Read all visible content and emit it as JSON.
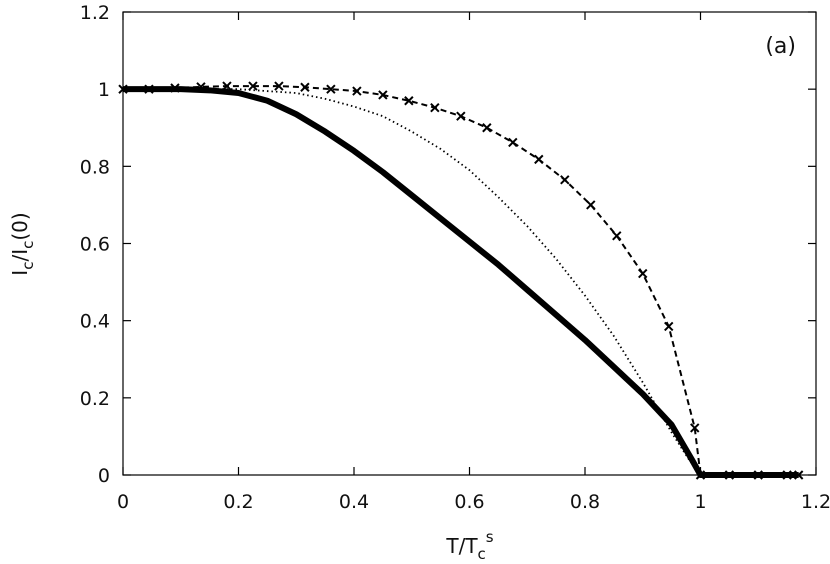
{
  "chart_data": {
    "type": "line",
    "panel_label": "(a)",
    "xlabel": {
      "main": "T/T",
      "sub": "c",
      "sup": "s"
    },
    "ylabel": {
      "main": "I",
      "sub1": "c",
      "mid": "/I",
      "sub2": "c",
      "tail": "(0)"
    },
    "xlim": [
      0,
      1.2
    ],
    "ylim": [
      0,
      1.2
    ],
    "xticks": [
      "0",
      "0.2",
      "0.4",
      "0.6",
      "0.8",
      "1",
      "1.2"
    ],
    "yticks": [
      "0",
      "0.2",
      "0.4",
      "0.6",
      "0.8",
      "1",
      "1.2"
    ],
    "grid": false,
    "series": [
      {
        "style": "solid-thick",
        "color": "#000000",
        "x": [
          0,
          0.05,
          0.1,
          0.15,
          0.2,
          0.25,
          0.3,
          0.35,
          0.4,
          0.45,
          0.5,
          0.55,
          0.6,
          0.65,
          0.7,
          0.75,
          0.8,
          0.85,
          0.9,
          0.95,
          0.985,
          1.0,
          1.05,
          1.1,
          1.15,
          1.17
        ],
        "y": [
          1.0,
          1.0,
          1.0,
          0.997,
          0.99,
          0.97,
          0.935,
          0.89,
          0.84,
          0.785,
          0.725,
          0.665,
          0.605,
          0.545,
          0.48,
          0.415,
          0.35,
          0.28,
          0.21,
          0.13,
          0.04,
          0.0,
          0.0,
          0.0,
          0.0,
          0.0
        ]
      },
      {
        "style": "dotted",
        "color": "#000000",
        "x": [
          0,
          0.1,
          0.2,
          0.3,
          0.35,
          0.4,
          0.45,
          0.5,
          0.55,
          0.6,
          0.65,
          0.7,
          0.75,
          0.8,
          0.85,
          0.9,
          0.95,
          0.98,
          1.0
        ],
        "y": [
          1.0,
          1.0,
          1.0,
          0.99,
          0.975,
          0.955,
          0.93,
          0.89,
          0.845,
          0.79,
          0.72,
          0.645,
          0.56,
          0.465,
          0.36,
          0.24,
          0.11,
          0.04,
          0.0
        ]
      },
      {
        "style": "dashed-markers",
        "marker": "x",
        "color": "#000000",
        "x": [
          0,
          0.045,
          0.09,
          0.135,
          0.18,
          0.225,
          0.27,
          0.315,
          0.36,
          0.405,
          0.45,
          0.495,
          0.54,
          0.585,
          0.63,
          0.675,
          0.72,
          0.765,
          0.81,
          0.855,
          0.9,
          0.945,
          0.99,
          1.0,
          1.05,
          1.1,
          1.15,
          1.17
        ],
        "y": [
          1.0,
          1.0,
          1.003,
          1.006,
          1.008,
          1.008,
          1.008,
          1.005,
          1.0,
          0.995,
          0.985,
          0.97,
          0.952,
          0.93,
          0.9,
          0.862,
          0.818,
          0.765,
          0.7,
          0.62,
          0.522,
          0.385,
          0.122,
          0.0,
          0.0,
          0.0,
          0.0,
          0.0
        ]
      }
    ]
  }
}
